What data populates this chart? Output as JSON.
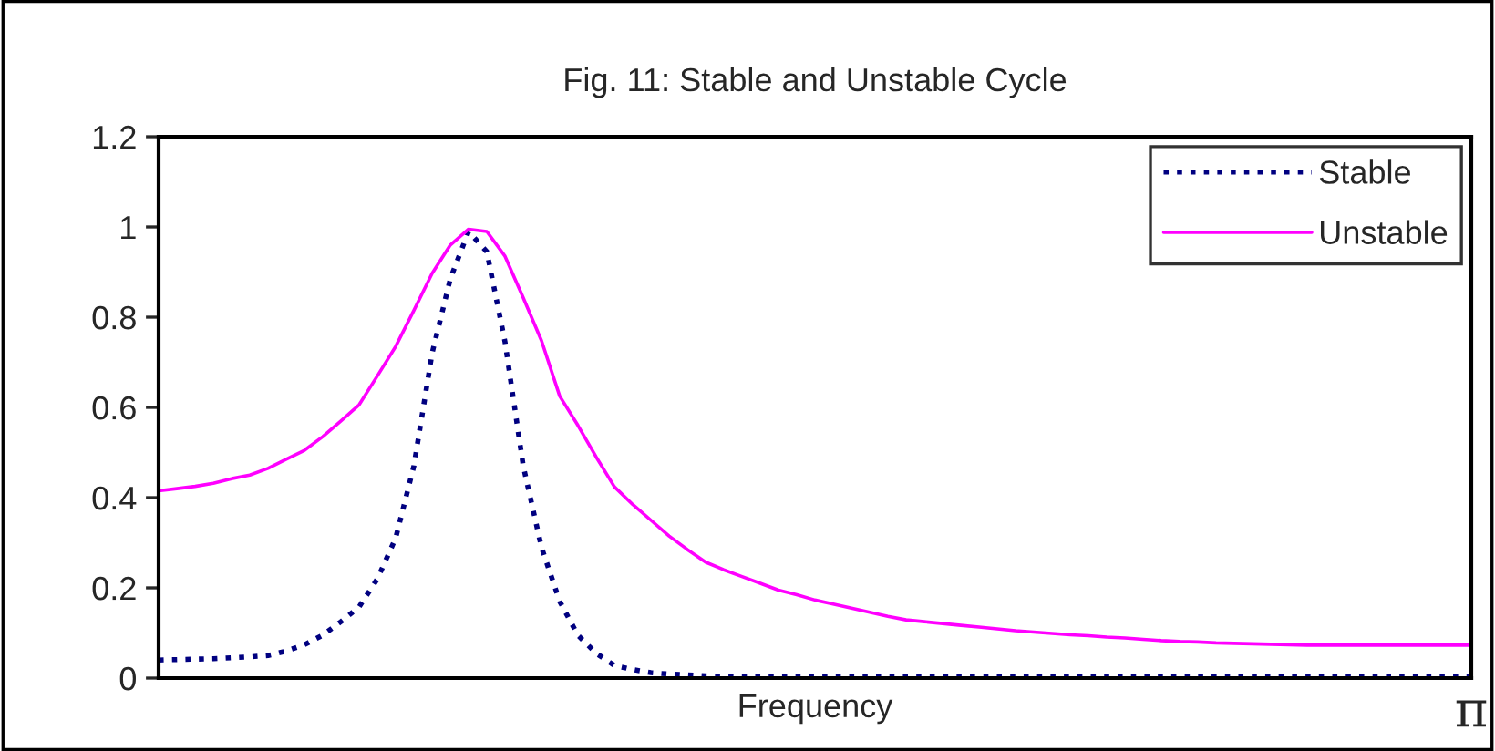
{
  "chart_data": {
    "type": "line",
    "title": "Fig. 11: Stable and Unstable Cycle",
    "xlabel": "Frequency",
    "annotations": [
      "π"
    ],
    "categories": [
      null,
      null,
      null,
      null,
      null,
      null,
      null,
      null,
      null,
      null,
      null,
      null,
      null,
      null,
      null,
      null,
      null,
      null,
      null,
      null,
      null,
      null,
      null,
      null,
      null,
      null,
      null,
      null,
      null,
      null,
      null,
      null,
      null,
      null,
      null,
      null,
      null,
      null,
      null,
      null,
      null,
      null,
      null,
      null,
      null,
      null,
      null,
      null,
      null,
      null,
      null,
      null,
      null,
      null,
      null,
      null,
      null,
      null,
      null,
      null,
      null,
      null,
      null,
      null,
      null,
      null,
      null,
      null,
      null,
      null,
      null,
      null,
      null
    ],
    "ylim": [
      0,
      1.2
    ],
    "yticks": [
      0,
      0.2,
      0.4,
      0.6,
      0.8,
      1,
      1.2
    ],
    "grid": false,
    "legend": "top right",
    "series": [
      {
        "name": "Stable",
        "color": "#000080",
        "line_style": "dotted",
        "values": [
          0.04,
          0.041,
          0.042,
          0.043,
          0.045,
          0.047,
          0.05,
          0.06,
          0.074,
          0.095,
          0.125,
          0.158,
          0.22,
          0.31,
          0.47,
          0.72,
          0.885,
          0.99,
          0.945,
          0.745,
          0.47,
          0.29,
          0.17,
          0.095,
          0.055,
          0.028,
          0.019,
          0.012,
          0.009,
          0.007,
          0.005,
          0.004,
          0.003,
          0.003,
          0.003,
          0.003,
          0.003,
          0.003,
          0.003,
          0.003,
          0.003,
          0.003,
          0.003,
          0.003,
          0.003,
          0.003,
          0.003,
          0.003,
          0.003,
          0.003,
          0.003,
          0.003,
          0.003,
          0.003,
          0.003,
          0.003,
          0.003,
          0.003,
          0.003,
          0.003,
          0.003,
          0.003,
          0.003,
          0.003,
          0.003,
          0.003,
          0.003,
          0.003,
          0.003,
          0.003,
          0.003,
          0.003,
          0.003
        ]
      },
      {
        "name": "Unstable",
        "color": "#ff00ff",
        "line_style": "solid",
        "values": [
          0.415,
          0.42,
          0.425,
          0.432,
          0.442,
          0.45,
          0.465,
          0.485,
          0.505,
          0.535,
          0.57,
          0.606,
          0.67,
          0.735,
          0.815,
          0.897,
          0.96,
          0.995,
          0.99,
          0.935,
          0.843,
          0.748,
          0.625,
          0.56,
          0.49,
          0.424,
          0.385,
          0.35,
          0.315,
          0.285,
          0.257,
          0.24,
          0.225,
          0.21,
          0.195,
          0.185,
          0.173,
          0.164,
          0.155,
          0.146,
          0.137,
          0.129,
          0.125,
          0.121,
          0.117,
          0.113,
          0.109,
          0.105,
          0.102,
          0.099,
          0.096,
          0.094,
          0.091,
          0.089,
          0.086,
          0.083,
          0.081,
          0.08,
          0.078,
          0.077,
          0.076,
          0.075,
          0.074,
          0.073,
          0.073,
          0.073,
          0.073,
          0.073,
          0.073,
          0.073,
          0.073,
          0.073,
          0.073
        ]
      }
    ]
  }
}
